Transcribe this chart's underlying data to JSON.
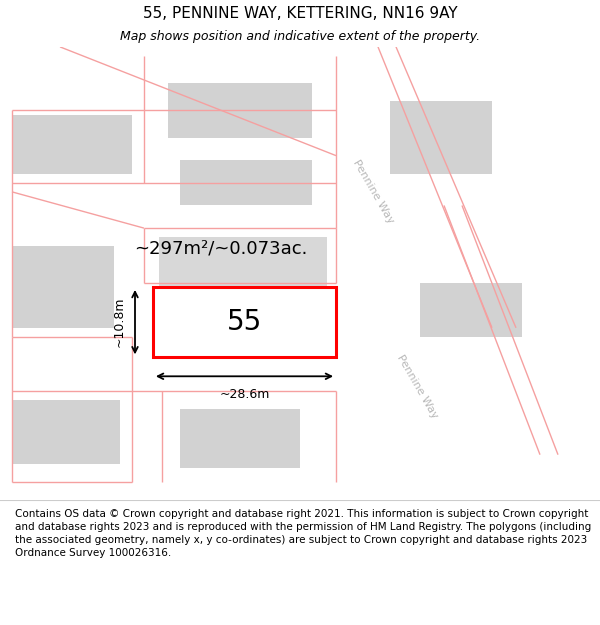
{
  "title": "55, PENNINE WAY, KETTERING, NN16 9AY",
  "subtitle": "Map shows position and indicative extent of the property.",
  "footer": "Contains OS data © Crown copyright and database right 2021. This information is subject to Crown copyright and database rights 2023 and is reproduced with the permission of HM Land Registry. The polygons (including the associated geometry, namely x, y co-ordinates) are subject to Crown copyright and database rights 2023 Ordnance Survey 100026316.",
  "bg_color": "#eeeeee",
  "plot_color": "#ff0000",
  "road_line_color": "#f5a0a0",
  "area_text": "~297m²/~0.073ac.",
  "width_text": "~28.6m",
  "height_text": "~10.8m",
  "number_text": "55",
  "title_fontsize": 11,
  "subtitle_fontsize": 9,
  "footer_fontsize": 7.5,
  "area_fontsize": 13,
  "number_fontsize": 20,
  "dim_fontsize": 9,
  "pennine_way_fontsize": 8
}
